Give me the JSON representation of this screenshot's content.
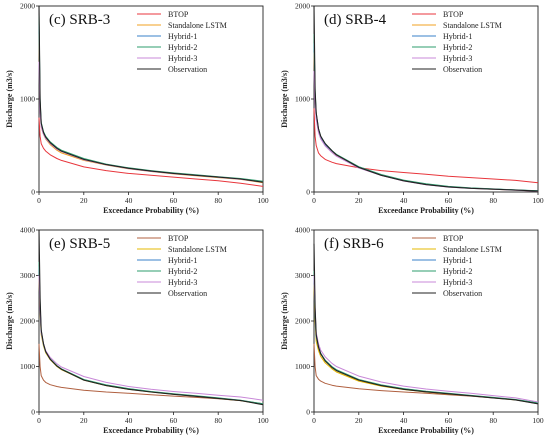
{
  "chart_data": [
    {
      "type": "line",
      "title": "(c) SRB-3",
      "xlabel": "Exceedance Probability (%)",
      "ylabel": "Discharge (m3/s)",
      "xlim": [
        0,
        100
      ],
      "ylim": [
        0,
        2000
      ],
      "xticks": [
        0,
        20,
        40,
        60,
        80,
        100
      ],
      "yticks": [
        0,
        1000,
        2000
      ],
      "legend_position": "top-right",
      "series": [
        {
          "name": "BTOP",
          "color": "#e8363c",
          "x": [
            0,
            0.5,
            1,
            2,
            3,
            5,
            8,
            10,
            20,
            30,
            40,
            50,
            60,
            70,
            80,
            90,
            100
          ],
          "y": [
            800,
            600,
            520,
            470,
            440,
            400,
            360,
            340,
            270,
            230,
            200,
            180,
            160,
            140,
            120,
            95,
            60
          ]
        },
        {
          "name": "Standalone LSTM",
          "color": "#f0a020",
          "x": [
            0,
            0.5,
            1,
            2,
            3,
            5,
            8,
            10,
            20,
            30,
            40,
            50,
            60,
            70,
            80,
            90,
            100
          ],
          "y": [
            1700,
            900,
            700,
            620,
            570,
            510,
            450,
            420,
            340,
            290,
            250,
            220,
            195,
            175,
            155,
            135,
            100
          ]
        },
        {
          "name": "Hybrid-1",
          "color": "#3a80c8",
          "x": [
            0,
            0.5,
            1,
            2,
            3,
            5,
            8,
            10,
            20,
            30,
            40,
            50,
            60,
            70,
            80,
            90,
            100
          ],
          "y": [
            1800,
            950,
            730,
            640,
            590,
            530,
            470,
            440,
            350,
            295,
            255,
            225,
            200,
            180,
            160,
            140,
            110
          ]
        },
        {
          "name": "Hybrid-2",
          "color": "#2e9e6e",
          "x": [
            0,
            0.5,
            1,
            2,
            3,
            5,
            8,
            10,
            20,
            30,
            40,
            50,
            60,
            70,
            80,
            90,
            100
          ],
          "y": [
            1900,
            980,
            750,
            650,
            600,
            540,
            480,
            450,
            360,
            300,
            260,
            230,
            205,
            185,
            165,
            145,
            115
          ]
        },
        {
          "name": "Hybrid-3",
          "color": "#c888d8",
          "x": [
            0,
            0.5,
            1,
            2,
            3,
            5,
            8,
            10,
            20,
            30,
            40,
            50,
            60,
            70,
            80,
            90,
            100
          ],
          "y": [
            1400,
            850,
            700,
            620,
            575,
            520,
            460,
            435,
            345,
            292,
            252,
            222,
            198,
            178,
            158,
            138,
            105
          ]
        },
        {
          "name": "Observation",
          "color": "#222222",
          "x": [
            0,
            0.5,
            1,
            2,
            3,
            5,
            8,
            10,
            20,
            30,
            40,
            50,
            60,
            70,
            80,
            90,
            100
          ],
          "y": [
            2000,
            1000,
            740,
            640,
            590,
            530,
            470,
            440,
            350,
            295,
            255,
            225,
            200,
            180,
            160,
            140,
            105
          ]
        }
      ]
    },
    {
      "type": "line",
      "title": "(d) SRB-4",
      "xlabel": "Exceedance Probability (%)",
      "ylabel": "Discharge (m3/s)",
      "xlim": [
        0,
        100
      ],
      "ylim": [
        0,
        2000
      ],
      "xticks": [
        0,
        20,
        40,
        60,
        80,
        100
      ],
      "yticks": [
        0,
        1000,
        2000
      ],
      "legend_position": "top-right",
      "series": [
        {
          "name": "BTOP",
          "color": "#e8363c",
          "x": [
            0,
            0.5,
            1,
            2,
            3,
            5,
            8,
            10,
            20,
            30,
            40,
            50,
            60,
            70,
            80,
            90,
            100
          ],
          "y": [
            900,
            600,
            500,
            420,
            390,
            350,
            320,
            305,
            260,
            230,
            210,
            190,
            170,
            155,
            140,
            125,
            100
          ]
        },
        {
          "name": "Standalone LSTM",
          "color": "#f0a020",
          "x": [
            0,
            0.5,
            1,
            2,
            3,
            5,
            8,
            10,
            20,
            30,
            40,
            50,
            60,
            70,
            80,
            90,
            100
          ],
          "y": [
            1500,
            1000,
            800,
            650,
            580,
            500,
            430,
            390,
            260,
            180,
            120,
            80,
            55,
            40,
            30,
            20,
            10
          ]
        },
        {
          "name": "Hybrid-1",
          "color": "#3a80c8",
          "x": [
            0,
            0.5,
            1,
            2,
            3,
            5,
            8,
            10,
            20,
            30,
            40,
            50,
            60,
            70,
            80,
            90,
            100
          ],
          "y": [
            1600,
            1050,
            830,
            670,
            590,
            510,
            440,
            400,
            270,
            185,
            125,
            85,
            58,
            42,
            32,
            22,
            12
          ]
        },
        {
          "name": "Hybrid-2",
          "color": "#2e9e6e",
          "x": [
            0,
            0.5,
            1,
            2,
            3,
            5,
            8,
            10,
            20,
            30,
            40,
            50,
            60,
            70,
            80,
            90,
            100
          ],
          "y": [
            1700,
            1080,
            850,
            680,
            600,
            520,
            445,
            405,
            272,
            188,
            128,
            88,
            60,
            44,
            33,
            23,
            13
          ]
        },
        {
          "name": "Hybrid-3",
          "color": "#c888d8",
          "x": [
            0,
            0.5,
            1,
            2,
            3,
            5,
            8,
            10,
            20,
            30,
            40,
            50,
            60,
            70,
            80,
            90,
            100
          ],
          "y": [
            1300,
            950,
            780,
            640,
            570,
            495,
            425,
            385,
            258,
            178,
            118,
            78,
            53,
            39,
            29,
            19,
            9
          ]
        },
        {
          "name": "Observation",
          "color": "#222222",
          "x": [
            0,
            0.5,
            1,
            2,
            3,
            5,
            8,
            10,
            20,
            30,
            40,
            50,
            60,
            70,
            80,
            90,
            100
          ],
          "y": [
            2000,
            1100,
            850,
            680,
            600,
            520,
            445,
            400,
            265,
            180,
            120,
            80,
            55,
            40,
            30,
            20,
            10
          ]
        }
      ]
    },
    {
      "type": "line",
      "title": "(e) SRB-5",
      "xlabel": "Exceedance Probability (%)",
      "ylabel": "Discharge (m3/s)",
      "xlim": [
        0,
        100
      ],
      "ylim": [
        0,
        4000
      ],
      "xticks": [
        0,
        20,
        40,
        60,
        80,
        100
      ],
      "yticks": [
        0,
        1000,
        2000,
        3000,
        4000
      ],
      "legend_position": "top-right",
      "series": [
        {
          "name": "BTOP",
          "color": "#b06040",
          "x": [
            0,
            0.5,
            1,
            2,
            3,
            5,
            8,
            10,
            20,
            30,
            40,
            50,
            60,
            70,
            80,
            90,
            100
          ],
          "y": [
            1500,
            1000,
            800,
            700,
            650,
            600,
            560,
            540,
            480,
            440,
            410,
            380,
            350,
            320,
            290,
            250,
            180
          ]
        },
        {
          "name": "Standalone LSTM",
          "color": "#e6b800",
          "x": [
            0,
            0.5,
            1,
            2,
            3,
            5,
            8,
            10,
            20,
            30,
            40,
            50,
            60,
            70,
            80,
            90,
            100
          ],
          "y": [
            3000,
            2200,
            1700,
            1450,
            1300,
            1150,
            1000,
            930,
            700,
            580,
            500,
            440,
            390,
            345,
            300,
            250,
            170
          ]
        },
        {
          "name": "Hybrid-1",
          "color": "#3a80c8",
          "x": [
            0,
            0.5,
            1,
            2,
            3,
            5,
            8,
            10,
            20,
            30,
            40,
            50,
            60,
            70,
            80,
            90,
            100
          ],
          "y": [
            3200,
            2300,
            1750,
            1480,
            1320,
            1160,
            1010,
            940,
            710,
            590,
            510,
            445,
            395,
            350,
            305,
            255,
            175
          ]
        },
        {
          "name": "Hybrid-2",
          "color": "#2e9e6e",
          "x": [
            0,
            0.5,
            1,
            2,
            3,
            5,
            8,
            10,
            20,
            30,
            40,
            50,
            60,
            70,
            80,
            90,
            100
          ],
          "y": [
            3300,
            2350,
            1780,
            1500,
            1330,
            1170,
            1020,
            950,
            715,
            595,
            515,
            450,
            400,
            355,
            310,
            260,
            180
          ]
        },
        {
          "name": "Hybrid-3",
          "color": "#c888d8",
          "x": [
            0,
            0.5,
            1,
            2,
            3,
            5,
            8,
            10,
            20,
            30,
            40,
            50,
            60,
            70,
            80,
            90,
            100
          ],
          "y": [
            3000,
            2250,
            1750,
            1500,
            1350,
            1200,
            1060,
            990,
            780,
            650,
            560,
            500,
            450,
            410,
            370,
            330,
            260
          ]
        },
        {
          "name": "Observation",
          "color": "#222222",
          "x": [
            0,
            0.5,
            1,
            2,
            3,
            5,
            8,
            10,
            20,
            30,
            40,
            50,
            60,
            70,
            80,
            90,
            100
          ],
          "y": [
            4000,
            2500,
            1800,
            1500,
            1330,
            1160,
            1010,
            940,
            700,
            580,
            500,
            440,
            390,
            345,
            300,
            250,
            160
          ]
        }
      ]
    },
    {
      "type": "line",
      "title": "(f) SRB-6",
      "xlabel": "Exceedance Probability (%)",
      "ylabel": "Discharge (m3/s)",
      "xlim": [
        0,
        100
      ],
      "ylim": [
        0,
        4000
      ],
      "xticks": [
        0,
        20,
        40,
        60,
        80,
        100
      ],
      "yticks": [
        0,
        1000,
        2000,
        3000,
        4000
      ],
      "legend_position": "top-right",
      "series": [
        {
          "name": "BTOP",
          "color": "#b06040",
          "x": [
            0,
            0.5,
            1,
            2,
            3,
            5,
            8,
            10,
            20,
            30,
            40,
            50,
            60,
            70,
            80,
            90,
            100
          ],
          "y": [
            1500,
            1000,
            800,
            720,
            680,
            630,
            590,
            570,
            510,
            470,
            440,
            410,
            380,
            350,
            310,
            270,
            180
          ]
        },
        {
          "name": "Standalone LSTM",
          "color": "#e6b800",
          "x": [
            0,
            0.5,
            1,
            2,
            3,
            5,
            8,
            10,
            20,
            30,
            40,
            50,
            60,
            70,
            80,
            90,
            100
          ],
          "y": [
            2800,
            2000,
            1550,
            1350,
            1220,
            1080,
            950,
            880,
            680,
            570,
            495,
            440,
            395,
            355,
            310,
            265,
            190
          ]
        },
        {
          "name": "Hybrid-1",
          "color": "#3a80c8",
          "x": [
            0,
            0.5,
            1,
            2,
            3,
            5,
            8,
            10,
            20,
            30,
            40,
            50,
            60,
            70,
            80,
            90,
            100
          ],
          "y": [
            3000,
            2150,
            1650,
            1420,
            1280,
            1130,
            990,
            920,
            710,
            590,
            510,
            450,
            405,
            360,
            315,
            270,
            195
          ]
        },
        {
          "name": "Hybrid-2",
          "color": "#2e9e6e",
          "x": [
            0,
            0.5,
            1,
            2,
            3,
            5,
            8,
            10,
            20,
            30,
            40,
            50,
            60,
            70,
            80,
            90,
            100
          ],
          "y": [
            3100,
            2200,
            1680,
            1440,
            1295,
            1140,
            1000,
            930,
            715,
            595,
            515,
            455,
            410,
            365,
            320,
            275,
            200
          ]
        },
        {
          "name": "Hybrid-3",
          "color": "#c888d8",
          "x": [
            0,
            0.5,
            1,
            2,
            3,
            5,
            8,
            10,
            20,
            30,
            40,
            50,
            60,
            70,
            80,
            90,
            100
          ],
          "y": [
            3000,
            2250,
            1750,
            1500,
            1360,
            1210,
            1070,
            1000,
            790,
            660,
            570,
            505,
            455,
            410,
            360,
            310,
            220
          ]
        },
        {
          "name": "Observation",
          "color": "#222222",
          "x": [
            0,
            0.5,
            1,
            2,
            3,
            5,
            8,
            10,
            20,
            30,
            40,
            50,
            60,
            70,
            80,
            90,
            100
          ],
          "y": [
            3700,
            2300,
            1700,
            1430,
            1280,
            1120,
            980,
            910,
            700,
            580,
            500,
            445,
            400,
            355,
            310,
            265,
            180
          ]
        }
      ]
    }
  ]
}
